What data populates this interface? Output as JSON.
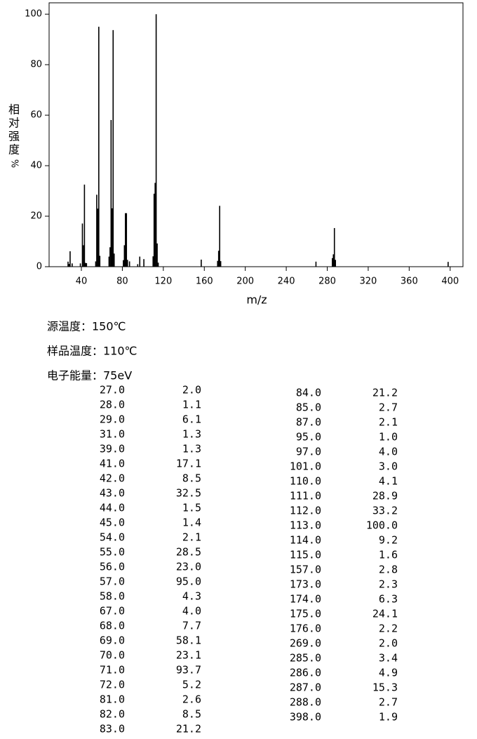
{
  "chart_data": {
    "type": "bar",
    "y_label": "相对强度",
    "y_label_unit": "%",
    "x_label": "m/z",
    "x": [
      27,
      28,
      29,
      31,
      39,
      41,
      42,
      43,
      44,
      45,
      54,
      55,
      56,
      57,
      58,
      67,
      68,
      69,
      70,
      71,
      72,
      81,
      82,
      83,
      84,
      85,
      87,
      95,
      97,
      101,
      110,
      111,
      112,
      113,
      114,
      115,
      157,
      173,
      174,
      175,
      176,
      269,
      285,
      286,
      287,
      288,
      398
    ],
    "values": [
      2.0,
      1.1,
      6.1,
      1.3,
      1.3,
      17.1,
      8.5,
      32.5,
      1.5,
      1.4,
      2.1,
      28.5,
      23.0,
      95.0,
      4.3,
      4.0,
      7.7,
      58.1,
      23.1,
      93.7,
      5.2,
      2.6,
      8.5,
      21.2,
      21.2,
      2.7,
      2.1,
      1.0,
      4.0,
      3.0,
      4.1,
      28.9,
      33.2,
      100,
      9.2,
      1.6,
      2.8,
      2.3,
      6.3,
      24.1,
      2.2,
      2.0,
      3.4,
      4.9,
      15.3,
      2.7,
      1.9
    ],
    "color": "#000000",
    "xlim": [
      8.5,
      412.5
    ],
    "xticks": [
      40,
      80,
      120,
      160,
      200,
      240,
      280,
      320,
      360,
      400
    ],
    "ylim": [
      0,
      104.5
    ],
    "yticks": [
      0,
      20,
      40,
      60,
      80,
      100
    ]
  },
  "conditions": [
    "源温度：150℃",
    "样品温度：110℃",
    "电子能量：75eV"
  ],
  "peak_table": {
    "columns": [
      [
        [
          "27.0",
          "2.0"
        ],
        [
          "28.0",
          "1.1"
        ],
        [
          "29.0",
          "6.1"
        ],
        [
          "31.0",
          "1.3"
        ],
        [
          "39.0",
          "1.3"
        ],
        [
          "41.0",
          "17.1"
        ],
        [
          "42.0",
          "8.5"
        ],
        [
          "43.0",
          "32.5"
        ],
        [
          "44.0",
          "1.5"
        ],
        [
          "45.0",
          "1.4"
        ],
        [
          "54.0",
          "2.1"
        ],
        [
          "55.0",
          "28.5"
        ],
        [
          "56.0",
          "23.0"
        ],
        [
          "57.0",
          "95.0"
        ],
        [
          "58.0",
          "4.3"
        ],
        [
          "67.0",
          "4.0"
        ],
        [
          "68.0",
          "7.7"
        ],
        [
          "69.0",
          "58.1"
        ],
        [
          "70.0",
          "23.1"
        ],
        [
          "71.0",
          "93.7"
        ],
        [
          "72.0",
          "5.2"
        ],
        [
          "81.0",
          "2.6"
        ],
        [
          "82.0",
          "8.5"
        ],
        [
          "83.0",
          "21.2"
        ]
      ],
      [
        [
          "84.0",
          "21.2"
        ],
        [
          "85.0",
          "2.7"
        ],
        [
          "87.0",
          "2.1"
        ],
        [
          "95.0",
          "1.0"
        ],
        [
          "97.0",
          "4.0"
        ],
        [
          "101.0",
          "3.0"
        ],
        [
          "110.0",
          "4.1"
        ],
        [
          "111.0",
          "28.9"
        ],
        [
          "112.0",
          "33.2"
        ],
        [
          "113.0",
          "100.0"
        ],
        [
          "114.0",
          "9.2"
        ],
        [
          "115.0",
          "1.6"
        ],
        [
          "157.0",
          "2.8"
        ],
        [
          "173.0",
          "2.3"
        ],
        [
          "174.0",
          "6.3"
        ],
        [
          "175.0",
          "24.1"
        ],
        [
          "176.0",
          "2.2"
        ],
        [
          "269.0",
          "2.0"
        ],
        [
          "285.0",
          "3.4"
        ],
        [
          "286.0",
          "4.9"
        ],
        [
          "287.0",
          "15.3"
        ],
        [
          "288.0",
          "2.7"
        ],
        [
          "398.0",
          "1.9"
        ]
      ]
    ]
  }
}
